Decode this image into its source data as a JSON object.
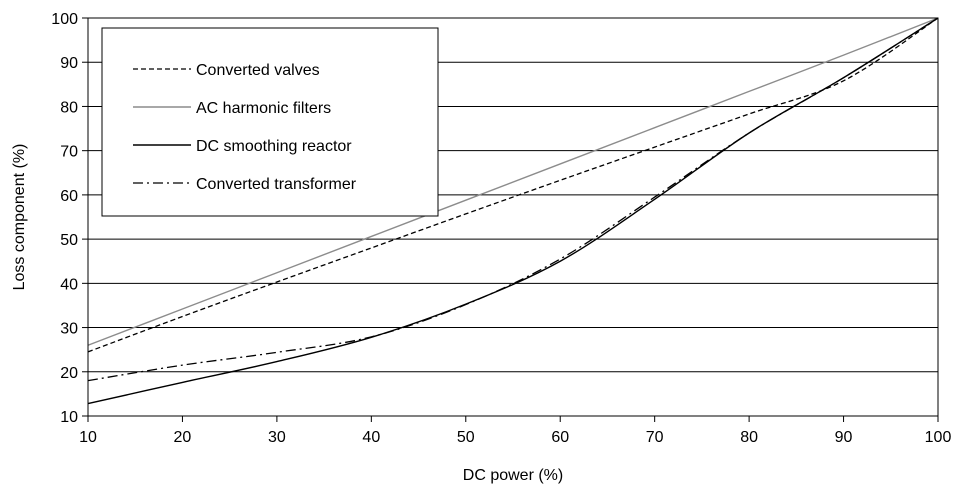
{
  "chart_data": {
    "type": "line",
    "title": "",
    "xlabel": "DC power (%)",
    "ylabel": "Loss component (%)",
    "xlim": [
      10,
      100
    ],
    "ylim": [
      10,
      100
    ],
    "x_ticks": [
      10,
      20,
      30,
      40,
      50,
      60,
      70,
      80,
      90,
      100
    ],
    "y_ticks": [
      10,
      20,
      30,
      40,
      50,
      60,
      70,
      80,
      90,
      100
    ],
    "grid": "horizontal",
    "legend_position": "top-left",
    "series": [
      {
        "name": "Converted valves",
        "style": "dashed",
        "color": "#000000",
        "x": [
          10,
          20,
          30,
          40,
          50,
          60,
          70,
          80,
          90,
          100
        ],
        "y": [
          24.5,
          32.5,
          40.3,
          48.0,
          55.7,
          63.3,
          70.8,
          78.3,
          85.8,
          100.0
        ]
      },
      {
        "name": "AC harmonic filters",
        "style": "solid",
        "color": "#8c8c8c",
        "x": [
          10,
          20,
          30,
          40,
          50,
          60,
          70,
          80,
          90,
          100
        ],
        "y": [
          26.0,
          34.2,
          42.4,
          50.6,
          58.8,
          67.0,
          75.2,
          83.4,
          91.6,
          100.0
        ]
      },
      {
        "name": "DC smoothing reactor",
        "style": "solid",
        "color": "#000000",
        "x": [
          10,
          20,
          30,
          40,
          50,
          60,
          70,
          80,
          90,
          100
        ],
        "y": [
          12.8,
          17.6,
          22.3,
          27.8,
          35.3,
          45.0,
          59.0,
          74.0,
          86.5,
          100.0
        ]
      },
      {
        "name": "Converted transformer",
        "style": "dash-dot",
        "color": "#000000",
        "x": [
          10,
          20,
          30,
          40,
          50,
          60,
          70,
          80,
          90,
          100
        ],
        "y": [
          18.0,
          21.5,
          24.4,
          27.9,
          35.2,
          45.5,
          59.5,
          74.0,
          86.5,
          100.0
        ]
      }
    ]
  }
}
